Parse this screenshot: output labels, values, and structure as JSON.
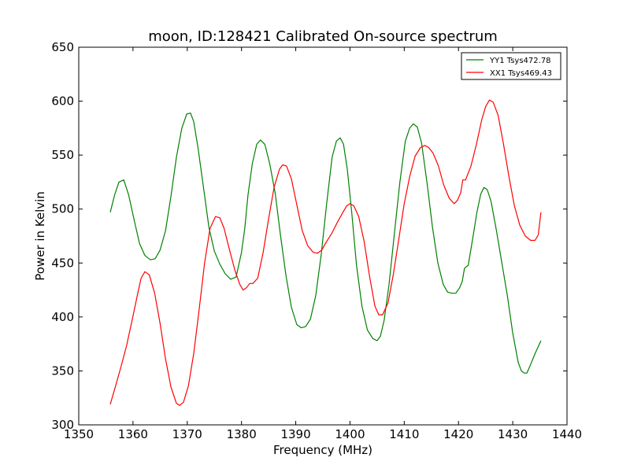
{
  "chart_data": {
    "type": "line",
    "title": "moon, ID:128421 Calibrated On-source spectrum",
    "xlabel": "Frequency (MHz)",
    "ylabel": "Power in Kelvin",
    "xlim": [
      1350,
      1440
    ],
    "ylim": [
      300,
      650
    ],
    "xticks": [
      1350,
      1360,
      1370,
      1380,
      1390,
      1400,
      1410,
      1420,
      1430,
      1440
    ],
    "yticks": [
      300,
      350,
      400,
      450,
      500,
      550,
      600,
      650
    ],
    "grid": false,
    "legend_position": "top-right",
    "series": [
      {
        "name": "YY1 Tsys472.78",
        "color": "#008000",
        "x": [
          1355.8,
          1356.6,
          1357.4,
          1358.3,
          1359.2,
          1360.2,
          1361.2,
          1362.2,
          1363.2,
          1364.1,
          1365.0,
          1366.0,
          1367.0,
          1368.0,
          1369.0,
          1369.9,
          1370.6,
          1371.2,
          1372.0,
          1373.0,
          1374.0,
          1375.0,
          1376.0,
          1377.0,
          1378.0,
          1379.0,
          1380.0,
          1380.6,
          1381.2,
          1382.0,
          1382.8,
          1383.5,
          1384.3,
          1385.2,
          1386.2,
          1387.2,
          1388.2,
          1389.2,
          1390.2,
          1391.0,
          1391.8,
          1392.7,
          1393.7,
          1394.7,
          1395.7,
          1396.7,
          1397.5,
          1398.2,
          1398.8,
          1399.5,
          1400.3,
          1401.2,
          1402.2,
          1403.2,
          1404.2,
          1405.0,
          1405.6,
          1406.3,
          1407.2,
          1408.2,
          1409.2,
          1410.2,
          1411.0,
          1411.7,
          1412.4,
          1413.2,
          1414.2,
          1415.2,
          1416.2,
          1417.2,
          1418.0,
          1418.8,
          1419.5,
          1420.2,
          1420.7,
          1421.1,
          1421.8,
          1422.6,
          1423.4,
          1424.1,
          1424.7,
          1425.3,
          1426.0,
          1427.0,
          1428.0,
          1429.0,
          1430.0,
          1431.0,
          1431.6,
          1432.1,
          1432.6,
          1433.3,
          1434.1,
          1435.2
        ],
        "values": [
          497,
          513,
          525,
          527,
          513,
          490,
          468,
          457,
          453,
          454,
          462,
          480,
          512,
          548,
          575,
          588,
          589,
          581,
          556,
          520,
          483,
          461,
          449,
          440,
          435,
          437,
          460,
          482,
          513,
          542,
          560,
          564,
          560,
          542,
          515,
          475,
          438,
          409,
          393,
          390,
          391,
          398,
          420,
          458,
          505,
          548,
          563,
          566,
          560,
          537,
          498,
          448,
          410,
          388,
          380,
          378,
          382,
          397,
          430,
          478,
          525,
          563,
          575,
          579,
          576,
          561,
          524,
          483,
          450,
          430,
          423,
          422,
          422,
          427,
          433,
          445,
          448,
          472,
          497,
          514,
          520,
          518,
          507,
          480,
          450,
          420,
          385,
          358,
          350,
          348,
          348,
          356,
          366,
          378
        ]
      },
      {
        "name": "XX1 Tsys469.43",
        "color": "#ff0000",
        "x": [
          1355.8,
          1356.8,
          1357.8,
          1358.8,
          1359.8,
          1360.8,
          1361.5,
          1362.2,
          1363.0,
          1364.0,
          1365.0,
          1366.0,
          1367.0,
          1368.0,
          1368.6,
          1369.3,
          1370.2,
          1371.2,
          1372.2,
          1373.2,
          1374.2,
          1375.2,
          1376.0,
          1376.8,
          1377.8,
          1378.8,
          1379.7,
          1380.3,
          1380.9,
          1381.5,
          1382.1,
          1383.0,
          1384.0,
          1385.0,
          1386.0,
          1387.0,
          1387.6,
          1388.3,
          1389.2,
          1390.2,
          1391.2,
          1392.2,
          1393.2,
          1394.0,
          1394.8,
          1395.7,
          1396.7,
          1397.7,
          1398.7,
          1399.4,
          1400.0,
          1400.7,
          1401.6,
          1402.6,
          1403.6,
          1404.6,
          1405.3,
          1406.0,
          1407.0,
          1408.0,
          1409.0,
          1410.0,
          1411.0,
          1412.0,
          1413.0,
          1413.8,
          1414.5,
          1415.3,
          1416.3,
          1417.3,
          1418.3,
          1419.2,
          1419.8,
          1420.4,
          1420.8,
          1421.3,
          1422.3,
          1423.3,
          1424.3,
          1425.0,
          1425.7,
          1426.4,
          1427.3,
          1428.3,
          1429.3,
          1430.3,
          1431.3,
          1432.3,
          1433.3,
          1434.1,
          1434.7,
          1435.2
        ],
        "values": [
          319,
          336,
          354,
          373,
          396,
          420,
          436,
          442,
          439,
          422,
          394,
          361,
          335,
          320,
          318,
          321,
          336,
          366,
          407,
          450,
          482,
          493,
          492,
          482,
          462,
          443,
          430,
          425,
          427,
          431,
          431,
          436,
          460,
          491,
          520,
          537,
          541,
          540,
          528,
          504,
          480,
          466,
          460,
          459,
          462,
          470,
          478,
          488,
          497,
          503,
          505,
          503,
          493,
          470,
          438,
          410,
          402,
          402,
          413,
          440,
          472,
          505,
          530,
          549,
          557,
          559,
          557,
          552,
          540,
          522,
          510,
          505,
          508,
          515,
          527,
          527,
          540,
          560,
          583,
          595,
          601,
          599,
          587,
          560,
          530,
          503,
          485,
          475,
          471,
          471,
          476,
          497
        ]
      }
    ]
  }
}
